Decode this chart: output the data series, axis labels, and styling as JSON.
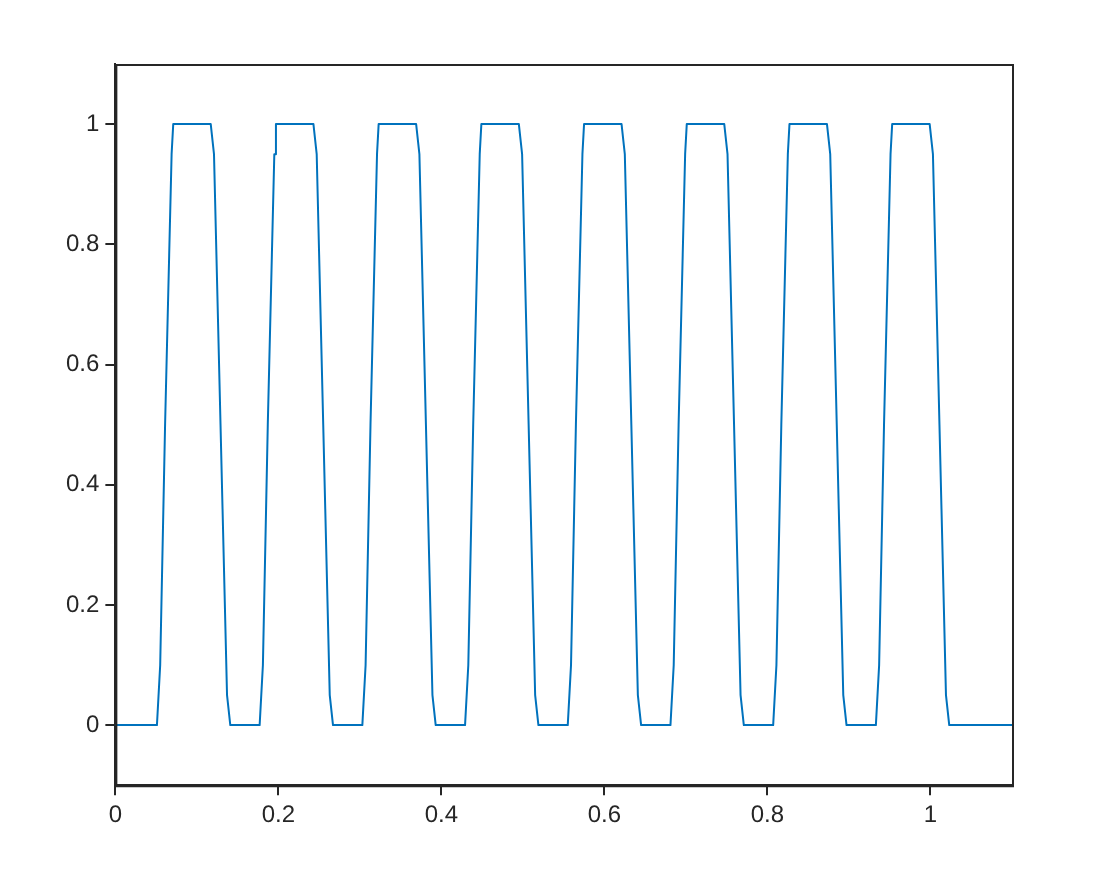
{
  "chart_data": {
    "type": "line",
    "xlim": [
      0,
      1.1
    ],
    "ylim": [
      -0.1,
      1.1
    ],
    "xticks": [
      0,
      0.2,
      0.4,
      0.6,
      0.8,
      1
    ],
    "yticks": [
      0,
      0.2,
      0.4,
      0.6,
      0.8,
      1
    ],
    "grid": false,
    "legend": false,
    "marker": "none",
    "line_style": "solid",
    "series": [
      {
        "color": "#0072bd",
        "x": [
          0,
          0.051,
          0.055,
          0.061,
          0.069,
          0.071,
          0.117,
          0.121,
          0.129,
          0.137,
          0.141,
          0.177,
          0.181,
          0.187,
          0.195,
          0.197,
          0.243,
          0.247,
          0.255,
          0.263,
          0.267,
          0.303,
          0.307,
          0.313,
          0.321,
          0.323,
          0.369,
          0.373,
          0.381,
          0.389,
          0.393,
          0.429,
          0.433,
          0.439,
          0.447,
          0.449,
          0.495,
          0.499,
          0.507,
          0.515,
          0.519,
          0.555,
          0.559,
          0.565,
          0.573,
          0.575,
          0.621,
          0.625,
          0.633,
          0.641,
          0.645,
          0.681,
          0.685,
          0.691,
          0.699,
          0.701,
          0.747,
          0.751,
          0.759,
          0.767,
          0.771,
          0.807,
          0.811,
          0.817,
          0.825,
          0.827,
          0.873,
          0.877,
          0.885,
          0.893,
          0.897,
          0.933,
          0.937,
          0.943,
          0.951,
          0.953,
          0.999,
          1.003,
          1.011,
          1.019,
          1.023,
          1.1
        ],
        "values": [
          0,
          0,
          0.1,
          0.5,
          0.95,
          1,
          1,
          0.95,
          0.5,
          0.05,
          0,
          0,
          0.1,
          0.5,
          0.95,
          1,
          1,
          0.95,
          0.5,
          0.05,
          0,
          0,
          0.1,
          0.5,
          0.95,
          1,
          1,
          0.95,
          0.5,
          0.05,
          0,
          0,
          0.1,
          0.5,
          0.95,
          1,
          1,
          0.95,
          0.5,
          0.05,
          0,
          0,
          0.1,
          0.5,
          0.95,
          1,
          1,
          0.95,
          0.5,
          0.05,
          0,
          0,
          0.1,
          0.5,
          0.95,
          1,
          1,
          0.95,
          0.5,
          0.05,
          0,
          0,
          0.1,
          0.5,
          0.95,
          1,
          1,
          0.95,
          0.5,
          0.05,
          0,
          0,
          0.1,
          0.5,
          0.95,
          1,
          1,
          0.95,
          0.5,
          0.05,
          0,
          0
        ]
      }
    ]
  }
}
